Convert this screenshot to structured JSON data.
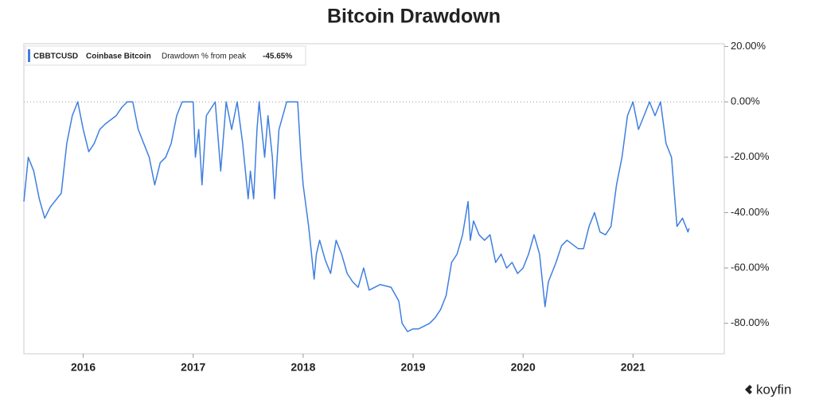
{
  "chart_data": {
    "type": "line",
    "title": "Bitcoin Drawdown",
    "legend": {
      "symbol": "CBBTCUSD",
      "name": "Coinbase Bitcoin",
      "metric": "Drawdown % from peak",
      "last": "-45.65%"
    },
    "brand": "koyfin",
    "color": "#3f7fe0",
    "reference_line": 0,
    "x": [
      2015.46,
      2015.5,
      2015.55,
      2015.6,
      2015.65,
      2015.7,
      2015.8,
      2015.85,
      2015.9,
      2015.95,
      2016.0,
      2016.05,
      2016.1,
      2016.15,
      2016.2,
      2016.3,
      2016.35,
      2016.4,
      2016.45,
      2016.5,
      2016.55,
      2016.6,
      2016.65,
      2016.7,
      2016.75,
      2016.8,
      2016.85,
      2016.9,
      2017.0,
      2017.02,
      2017.05,
      2017.08,
      2017.12,
      2017.2,
      2017.25,
      2017.3,
      2017.35,
      2017.4,
      2017.45,
      2017.5,
      2017.52,
      2017.55,
      2017.58,
      2017.6,
      2017.65,
      2017.68,
      2017.72,
      2017.74,
      2017.78,
      2017.85,
      2017.9,
      2017.95,
      2017.98,
      2018.0,
      2018.05,
      2018.1,
      2018.12,
      2018.15,
      2018.2,
      2018.25,
      2018.3,
      2018.35,
      2018.4,
      2018.45,
      2018.5,
      2018.55,
      2018.6,
      2018.7,
      2018.8,
      2018.87,
      2018.9,
      2018.95,
      2019.0,
      2019.05,
      2019.1,
      2019.15,
      2019.2,
      2019.25,
      2019.3,
      2019.35,
      2019.4,
      2019.45,
      2019.5,
      2019.52,
      2019.55,
      2019.6,
      2019.65,
      2019.7,
      2019.75,
      2019.8,
      2019.85,
      2019.9,
      2019.95,
      2020.0,
      2020.05,
      2020.1,
      2020.15,
      2020.2,
      2020.23,
      2020.3,
      2020.35,
      2020.4,
      2020.5,
      2020.55,
      2020.6,
      2020.65,
      2020.7,
      2020.75,
      2020.8,
      2020.85,
      2020.9,
      2020.95,
      2021.0,
      2021.05,
      2021.1,
      2021.15,
      2021.2,
      2021.25,
      2021.3,
      2021.35,
      2021.38,
      2021.4,
      2021.45,
      2021.5,
      2021.51
    ],
    "values": [
      -36,
      -20,
      -25,
      -35,
      -42,
      -38,
      -33,
      -15,
      -5,
      0,
      -10,
      -18,
      -15,
      -10,
      -8,
      -5,
      -2,
      0,
      0,
      -10,
      -15,
      -20,
      -30,
      -22,
      -20,
      -15,
      -5,
      0,
      0,
      -20,
      -10,
      -30,
      -5,
      0,
      -25,
      0,
      -10,
      0,
      -15,
      -35,
      -25,
      -35,
      -10,
      0,
      -20,
      -5,
      -20,
      -35,
      -10,
      0,
      0,
      0,
      -20,
      -30,
      -45,
      -64,
      -55,
      -50,
      -57,
      -62,
      -50,
      -55,
      -62,
      -65,
      -67,
      -60,
      -68,
      -66,
      -67,
      -72,
      -80,
      -83,
      -82,
      -82,
      -81,
      -80,
      -78,
      -75,
      -70,
      -58,
      -55,
      -48,
      -36,
      -50,
      -43,
      -48,
      -50,
      -48,
      -58,
      -55,
      -60,
      -58,
      -62,
      -60,
      -55,
      -48,
      -55,
      -74,
      -65,
      -58,
      -52,
      -50,
      -53,
      -53,
      -45,
      -40,
      -47,
      -48,
      -45,
      -30,
      -20,
      -5,
      0,
      -10,
      -5,
      0,
      -5,
      0,
      -15,
      -20,
      -35,
      -45,
      -42,
      -47,
      -45.65
    ],
    "xlim": [
      2015.46,
      2021.83
    ],
    "xticks": [
      2016,
      2017,
      2018,
      2019,
      2020,
      2021
    ],
    "ylim": [
      -91,
      21
    ],
    "yticks": [
      {
        "value": 20,
        "label": "20.00%"
      },
      {
        "value": 0,
        "label": "0.00%"
      },
      {
        "value": -20,
        "label": "-20.00%"
      },
      {
        "value": -40,
        "label": "-40.00%"
      },
      {
        "value": -60,
        "label": "-60.00%"
      },
      {
        "value": -80,
        "label": "-80.00%"
      }
    ]
  }
}
